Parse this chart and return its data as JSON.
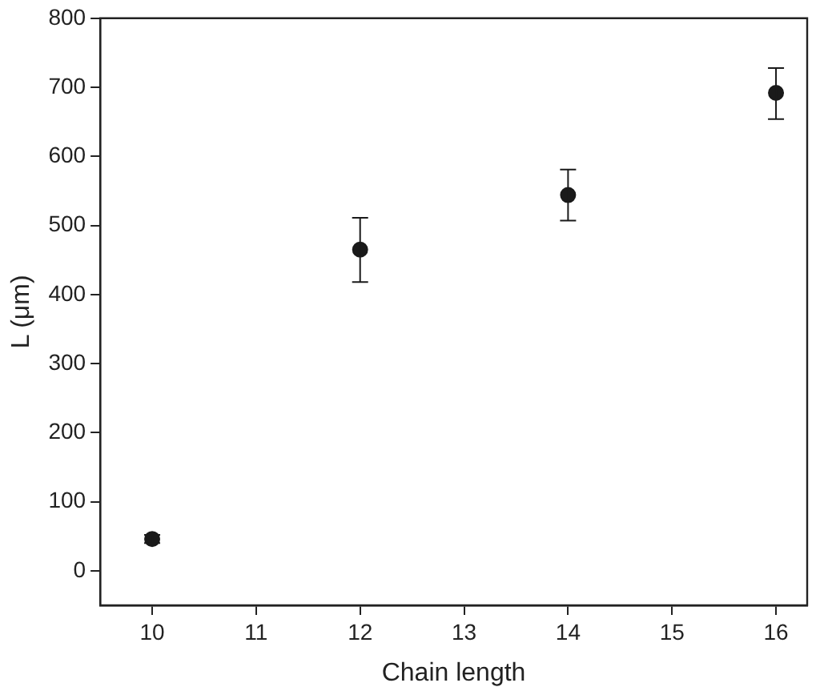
{
  "chart_data": {
    "type": "scatter",
    "xlabel": "Chain length",
    "ylabel": "L (μm)",
    "x": [
      10,
      12,
      14,
      16
    ],
    "series": [
      {
        "color": "#1a1a1a",
        "values": [
          46,
          465,
          544,
          692
        ],
        "errors": [
          [
            40,
            52
          ],
          [
            418,
            511
          ],
          [
            507,
            581
          ],
          [
            654,
            728
          ]
        ]
      }
    ],
    "xlim": [
      9.5,
      16.3
    ],
    "xticks": [
      10,
      11,
      12,
      13,
      14,
      15,
      16
    ],
    "ylim": [
      -50,
      800
    ],
    "yticks": [
      0,
      100,
      200,
      300,
      400,
      500,
      600,
      700,
      800
    ],
    "grid": false,
    "legend": false,
    "marker": "circle"
  }
}
